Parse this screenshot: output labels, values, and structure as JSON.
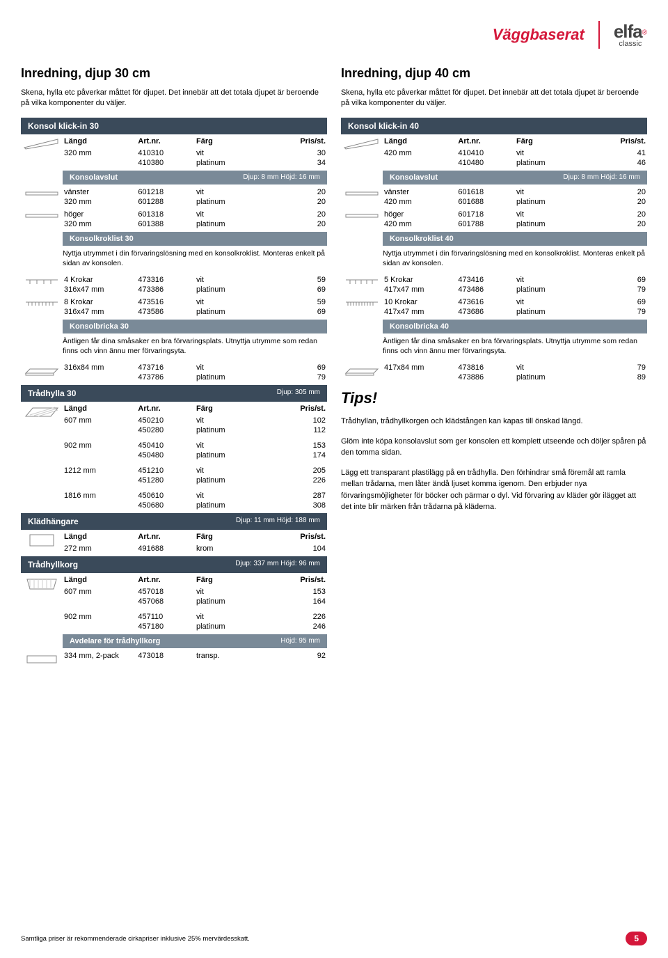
{
  "brand": {
    "main": "Väggbaserat",
    "logo": "elfa",
    "logosub": "classic",
    "reg": "®"
  },
  "left": {
    "title": "Inredning, djup 30 cm",
    "intro": "Skena, hylla etc påverkar måttet för djupet. Det innebär att det totala djupet är beroende på vilka komponenter du väljer.",
    "konsol_header": "Konsol klick-in 30",
    "th": {
      "langd": "Längd",
      "artnr": "Art.nr.",
      "farg": "Färg",
      "pris": "Pris/st."
    },
    "konsol_rows": [
      {
        "l": "320 mm",
        "a": "410310",
        "f": "vit",
        "p": "30"
      },
      {
        "l": "",
        "a": "410380",
        "f": "platinum",
        "p": "34"
      }
    ],
    "konsolavslut": {
      "title": "Konsolavslut",
      "note": "Djup: 8 mm Höjd: 16 mm"
    },
    "avslut_v": [
      {
        "l": "vänster",
        "a": "601218",
        "f": "vit",
        "p": "20"
      },
      {
        "l": "320 mm",
        "a": "601288",
        "f": "platinum",
        "p": "20"
      }
    ],
    "avslut_h": [
      {
        "l": "höger",
        "a": "601318",
        "f": "vit",
        "p": "20"
      },
      {
        "l": "320 mm",
        "a": "601388",
        "f": "platinum",
        "p": "20"
      }
    ],
    "kroklist": {
      "title": "Konsolkroklist 30",
      "desc": "Nyttja utrymmet i din förvaringslösning med en konsolkroklist. Monteras enkelt på sidan av konsolen."
    },
    "krok4": [
      {
        "l": "4 Krokar",
        "a": "473316",
        "f": "vit",
        "p": "59"
      },
      {
        "l": "316x47 mm",
        "a": "473386",
        "f": "platinum",
        "p": "69"
      }
    ],
    "krok8": [
      {
        "l": "8 Krokar",
        "a": "473516",
        "f": "vit",
        "p": "59"
      },
      {
        "l": "316x47 mm",
        "a": "473586",
        "f": "platinum",
        "p": "69"
      }
    ],
    "bricka": {
      "title": "Konsolbricka 30",
      "desc": "Äntligen får dina småsaker en bra förvaringsplats. Utnyttja utrymme som redan finns och vinn ännu mer förvaringsyta."
    },
    "bricka_rows": [
      {
        "l": "316x84 mm",
        "a": "473716",
        "f": "vit",
        "p": "69"
      },
      {
        "l": "",
        "a": "473786",
        "f": "platinum",
        "p": "79"
      }
    ],
    "tradhylla": {
      "title": "Trådhylla 30",
      "note": "Djup: 305 mm"
    },
    "tradhylla_rows": [
      {
        "l": "607 mm",
        "a": "450210",
        "f": "vit",
        "p": "102"
      },
      {
        "l": "",
        "a": "450280",
        "f": "platinum",
        "p": "112"
      },
      {
        "l": "902 mm",
        "a": "450410",
        "f": "vit",
        "p": "153"
      },
      {
        "l": "",
        "a": "450480",
        "f": "platinum",
        "p": "174"
      },
      {
        "l": "1212 mm",
        "a": "451210",
        "f": "vit",
        "p": "205"
      },
      {
        "l": "",
        "a": "451280",
        "f": "platinum",
        "p": "226"
      },
      {
        "l": "1816 mm",
        "a": "450610",
        "f": "vit",
        "p": "287"
      },
      {
        "l": "",
        "a": "450680",
        "f": "platinum",
        "p": "308"
      }
    ],
    "kladhangare": {
      "title": "Klädhängare",
      "note": "Djup: 11 mm Höjd: 188 mm"
    },
    "kladhangare_rows": [
      {
        "l": "272 mm",
        "a": "491688",
        "f": "krom",
        "p": "104"
      }
    ],
    "tradhyllkorg": {
      "title": "Trådhyllkorg",
      "note": "Djup: 337 mm Höjd: 96 mm"
    },
    "tradhyllkorg_rows": [
      {
        "l": "607 mm",
        "a": "457018",
        "f": "vit",
        "p": "153"
      },
      {
        "l": "",
        "a": "457068",
        "f": "platinum",
        "p": "164"
      },
      {
        "l": "902 mm",
        "a": "457110",
        "f": "vit",
        "p": "226"
      },
      {
        "l": "",
        "a": "457180",
        "f": "platinum",
        "p": "246"
      }
    ],
    "avdelare": {
      "title": "Avdelare för trådhyllkorg",
      "note": "Höjd: 95 mm"
    },
    "avdelare_rows": [
      {
        "l": "334 mm, 2-pack",
        "a": "473018",
        "f": "transp.",
        "p": "92"
      }
    ]
  },
  "right": {
    "title": "Inredning, djup 40 cm",
    "intro": "Skena, hylla etc påverkar måttet för djupet. Det innebär att det totala djupet är beroende på vilka komponenter du väljer.",
    "konsol_header": "Konsol klick-in 40",
    "th": {
      "langd": "Längd",
      "artnr": "Art.nr.",
      "farg": "Färg",
      "pris": "Pris/st."
    },
    "konsol_rows": [
      {
        "l": "420 mm",
        "a": "410410",
        "f": "vit",
        "p": "41"
      },
      {
        "l": "",
        "a": "410480",
        "f": "platinum",
        "p": "46"
      }
    ],
    "konsolavslut": {
      "title": "Konsolavslut",
      "note": "Djup: 8 mm Höjd: 16 mm"
    },
    "avslut_v": [
      {
        "l": "vänster",
        "a": "601618",
        "f": "vit",
        "p": "20"
      },
      {
        "l": "420 mm",
        "a": "601688",
        "f": "platinum",
        "p": "20"
      }
    ],
    "avslut_h": [
      {
        "l": "höger",
        "a": "601718",
        "f": "vit",
        "p": "20"
      },
      {
        "l": "420 mm",
        "a": "601788",
        "f": "platinum",
        "p": "20"
      }
    ],
    "kroklist": {
      "title": "Konsolkroklist 40",
      "desc": "Nyttja utrymmet i din förvaringslösning med en konsolkroklist. Monteras enkelt på sidan av konsolen."
    },
    "krok5": [
      {
        "l": "5 Krokar",
        "a": "473416",
        "f": "vit",
        "p": "69"
      },
      {
        "l": "417x47 mm",
        "a": "473486",
        "f": "platinum",
        "p": "79"
      }
    ],
    "krok10": [
      {
        "l": "10 Krokar",
        "a": "473616",
        "f": "vit",
        "p": "69"
      },
      {
        "l": "417x47 mm",
        "a": "473686",
        "f": "platinum",
        "p": "79"
      }
    ],
    "bricka": {
      "title": "Konsolbricka 40",
      "desc": "Äntligen får dina småsaker en bra förvaringsplats. Utnyttja utrymme som redan finns och vinn ännu mer förvaringsyta."
    },
    "bricka_rows": [
      {
        "l": "417x84 mm",
        "a": "473816",
        "f": "vit",
        "p": "79"
      },
      {
        "l": "",
        "a": "473886",
        "f": "platinum",
        "p": "89"
      }
    ]
  },
  "tips": {
    "title": "Tips!",
    "p1": "Trådhyllan, trådhyllkorgen och klädstången kan kapas till önskad längd.",
    "p2": "Glöm inte köpa konsolavslut som ger konsolen ett komplett utseende och döljer spåren på den tomma sidan.",
    "p3": "Lägg ett transparant plastilägg på en trådhylla. Den förhindrar små föremål att ramla mellan trådarna, men låter ändå ljuset komma igenom. Den erbjuder nya förvaringsmöjligheter för böcker och pärmar o dyl. Vid förvaring av kläder gör ilägget att det inte blir märken från trådarna på kläderna."
  },
  "footer": {
    "disclaimer": "Samtliga priser är rekommenderade cirkapriser inklusive 25% mervärdesskatt.",
    "page": "5"
  },
  "colors": {
    "red": "#d4173a",
    "dark": "#3a4a5a",
    "mid": "#7a8a98"
  }
}
